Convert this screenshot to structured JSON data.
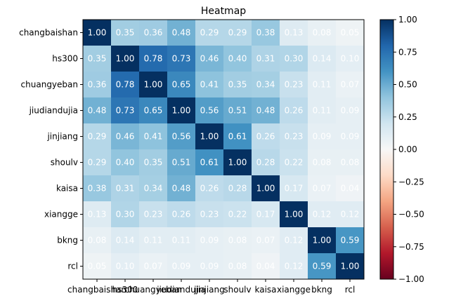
{
  "chart_data": {
    "type": "heatmap",
    "title": "Heatmap",
    "xlabel": "",
    "ylabel": "",
    "categories": [
      "changbaishan",
      "hs300",
      "chuangyeban",
      "jiudiandujia",
      "jinjiang",
      "shoulv",
      "kaisa",
      "xiangge",
      "bkng",
      "rcl"
    ],
    "values": [
      [
        1.0,
        0.35,
        0.36,
        0.48,
        0.29,
        0.29,
        0.38,
        0.13,
        0.08,
        0.05
      ],
      [
        0.35,
        1.0,
        0.78,
        0.73,
        0.46,
        0.4,
        0.31,
        0.3,
        0.14,
        0.1
      ],
      [
        0.36,
        0.78,
        1.0,
        0.65,
        0.41,
        0.35,
        0.34,
        0.23,
        0.11,
        0.07
      ],
      [
        0.48,
        0.73,
        0.65,
        1.0,
        0.56,
        0.51,
        0.48,
        0.26,
        0.11,
        0.09
      ],
      [
        0.29,
        0.46,
        0.41,
        0.56,
        1.0,
        0.61,
        0.26,
        0.23,
        0.09,
        0.09
      ],
      [
        0.29,
        0.4,
        0.35,
        0.51,
        0.61,
        1.0,
        0.28,
        0.22,
        0.08,
        0.08
      ],
      [
        0.38,
        0.31,
        0.34,
        0.48,
        0.26,
        0.28,
        1.0,
        0.17,
        0.07,
        0.04
      ],
      [
        0.13,
        0.3,
        0.23,
        0.26,
        0.23,
        0.22,
        0.17,
        1.0,
        0.12,
        0.12
      ],
      [
        0.08,
        0.14,
        0.11,
        0.11,
        0.09,
        0.08,
        0.07,
        0.12,
        1.0,
        0.59
      ],
      [
        0.05,
        0.1,
        0.07,
        0.09,
        0.09,
        0.08,
        0.04,
        0.12,
        0.59,
        1.0
      ]
    ],
    "colormap": "RdBu",
    "vmin": -1.0,
    "vmax": 1.0,
    "colorbar_ticks": [
      "1.00",
      "0.75",
      "0.50",
      "0.25",
      "0.00",
      "−0.25",
      "−0.50",
      "−0.75",
      "−1.00"
    ],
    "colorbar_tick_values": [
      1.0,
      0.75,
      0.5,
      0.25,
      0.0,
      -0.25,
      -0.5,
      -0.75,
      -1.0
    ]
  }
}
